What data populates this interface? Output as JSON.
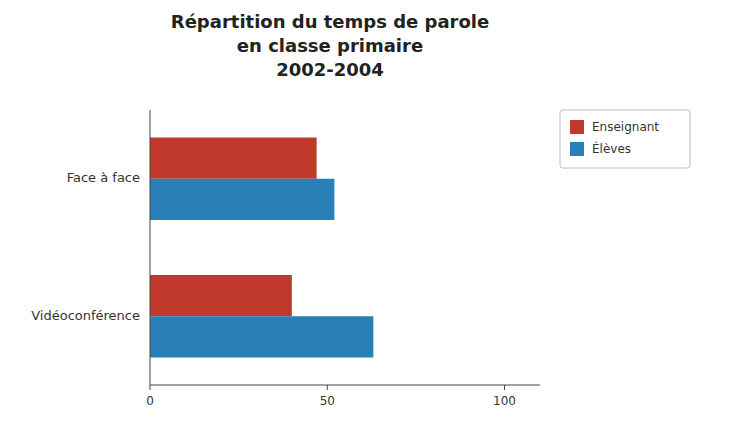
{
  "chart_data": {
    "type": "bar",
    "orientation": "horizontal",
    "title": "Répartition du temps de parole\nen classe primaire\n2002-2004",
    "categories": [
      "Vidéoconférence",
      "Face à face"
    ],
    "series": [
      {
        "name": "Enseignant",
        "color": "#C1392B",
        "values": [
          40,
          47
        ]
      },
      {
        "name": "Élèves",
        "color": "#2980B9",
        "values": [
          63,
          52
        ]
      }
    ],
    "xlim": [
      0,
      110
    ],
    "xticks": [
      0,
      50,
      100
    ],
    "grid": false,
    "legend": "upper right"
  }
}
